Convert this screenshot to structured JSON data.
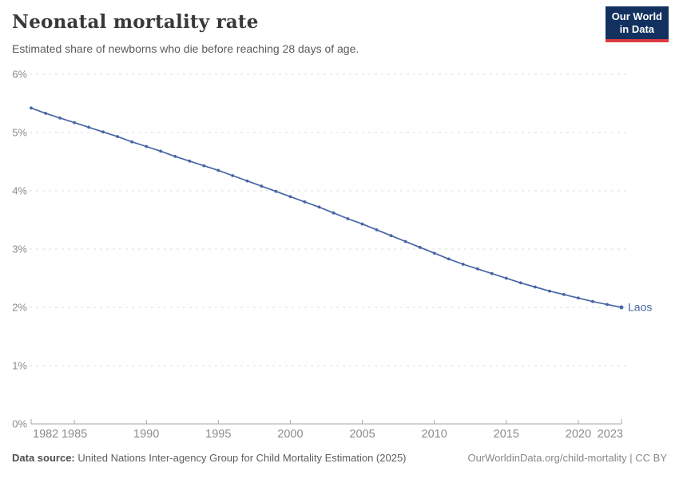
{
  "header": {
    "title": "Neonatal mortality rate",
    "subtitle": "Estimated share of newborns who die before reaching 28 days of age.",
    "logo": {
      "line1": "Our World",
      "line2": "in Data"
    }
  },
  "chart_data": {
    "type": "line",
    "title": "Neonatal mortality rate",
    "xlabel": "",
    "ylabel": "",
    "xlim": [
      1982,
      2023
    ],
    "ylim": [
      0,
      6
    ],
    "grid": "horizontal-dashed",
    "legend_position": "end-of-line-label",
    "x_ticks": [
      1982,
      1985,
      1990,
      1995,
      2000,
      2005,
      2010,
      2015,
      2020,
      2023
    ],
    "y_ticks": [
      "0%",
      "1%",
      "2%",
      "3%",
      "4%",
      "5%",
      "6%"
    ],
    "series": [
      {
        "name": "Laos",
        "color": "#4865a4",
        "unit": "%",
        "years": [
          1982,
          1983,
          1984,
          1985,
          1986,
          1987,
          1988,
          1989,
          1990,
          1991,
          1992,
          1993,
          1994,
          1995,
          1996,
          1997,
          1998,
          1999,
          2000,
          2001,
          2002,
          2003,
          2004,
          2005,
          2006,
          2007,
          2008,
          2009,
          2010,
          2011,
          2012,
          2013,
          2014,
          2015,
          2016,
          2017,
          2018,
          2019,
          2020,
          2021,
          2022,
          2023
        ],
        "values": [
          5.42,
          5.33,
          5.25,
          5.17,
          5.09,
          5.01,
          4.93,
          4.84,
          4.76,
          4.68,
          4.59,
          4.51,
          4.43,
          4.35,
          4.26,
          4.17,
          4.08,
          3.99,
          3.9,
          3.81,
          3.72,
          3.62,
          3.52,
          3.43,
          3.33,
          3.23,
          3.13,
          3.03,
          2.93,
          2.83,
          2.74,
          2.66,
          2.58,
          2.5,
          2.42,
          2.35,
          2.28,
          2.22,
          2.16,
          2.1,
          2.05,
          2.0
        ]
      }
    ],
    "colors": {
      "line": "#4865a4",
      "gridline": "#dcdcdc",
      "axis": "#a7a7a7",
      "axis_text": "#8b8b8b"
    }
  },
  "footer": {
    "source_label": "Data source:",
    "source_text": "United Nations Inter-agency Group for Child Mortality Estimation (2025)",
    "right_text": "OurWorldinData.org/child-mortality | CC BY"
  }
}
